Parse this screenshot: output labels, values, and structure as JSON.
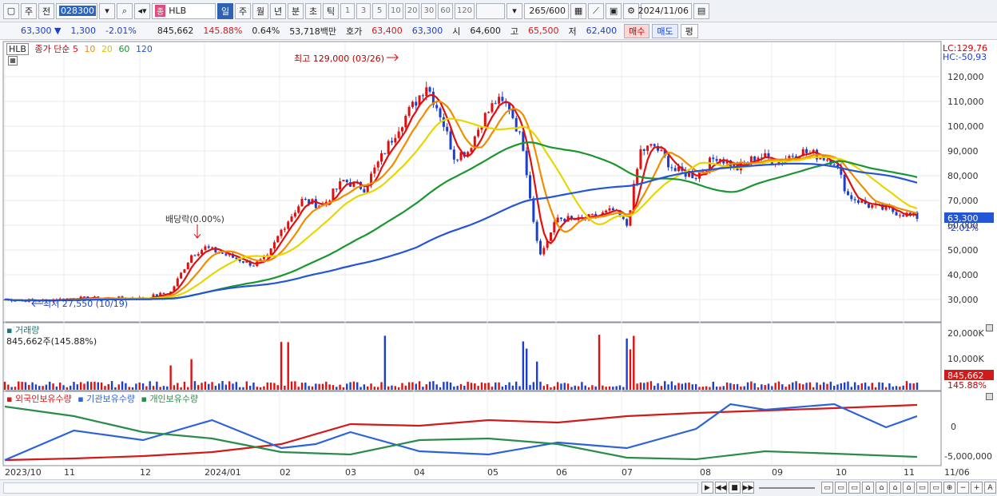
{
  "toolbar": {
    "type_label": "주",
    "prev_label": "전",
    "code": "028300",
    "name_badge": "종",
    "name": "HLB",
    "periods": [
      "일",
      "주",
      "월",
      "년",
      "분",
      "초",
      "틱"
    ],
    "active_period": "일",
    "numbers": [
      "1",
      "3",
      "5",
      "10",
      "20",
      "30",
      "60",
      "120"
    ],
    "count": "265/600",
    "date": "2024/11/06"
  },
  "quote": {
    "price": "63,300",
    "change": "1,300",
    "change_pct": "-2.01%",
    "volume": "845,662",
    "volume_ratio": "145.88%",
    "turnover": "0.64%",
    "amount": "53,718백만",
    "hoga_label": "호가",
    "ask": "63,400",
    "bid": "63,300",
    "open_label": "시",
    "open": "64,600",
    "high_label": "고",
    "high": "65,500",
    "low_label": "저",
    "low": "62,400",
    "buy_label": "매수",
    "sell_label": "매도",
    "eval_label": "평"
  },
  "price_panel": {
    "legend_name": "HLB",
    "legend_ma": "종가 단순",
    "ma_periods": [
      "5",
      "10",
      "20",
      "60",
      "120"
    ],
    "ma_colors": [
      "#e01010",
      "#f08c00",
      "#e8d600",
      "#1a9630",
      "#2455d6"
    ],
    "lc": "LC:129,76",
    "hc": "HC:-50,93",
    "high_note": "최고 129,000 (03/26)",
    "low_note": "최저 27,550 (10/19)",
    "dividend_note": "배당락(0.00%)",
    "price_tag": "63,300",
    "pct_tag": "-2.01%",
    "y_ticks": [
      "120,000",
      "110,000",
      "100,000",
      "90,000",
      "80,000",
      "70,000",
      "60,000",
      "50,000",
      "40,000",
      "30,000"
    ]
  },
  "volume_panel": {
    "title": "거래량",
    "value": "845,662주(145.88%)",
    "y_ticks": [
      "20,000K",
      "10,000K"
    ],
    "tag": "845,662",
    "tag_pct": "145.88%"
  },
  "holdings_panel": {
    "labels": [
      "외국인보유수량",
      "기관보유수량",
      "개인보유수량"
    ],
    "colors": [
      "#d11a1a",
      "#2c63d8",
      "#2a8c4a"
    ],
    "y_ticks": [
      "0",
      "-5,000,000"
    ]
  },
  "x_axis": [
    "2023/10",
    "11",
    "12",
    "2024/01",
    "02",
    "03",
    "04",
    "05",
    "06",
    "07",
    "08",
    "09",
    "10",
    "11",
    "11/06"
  ]
}
